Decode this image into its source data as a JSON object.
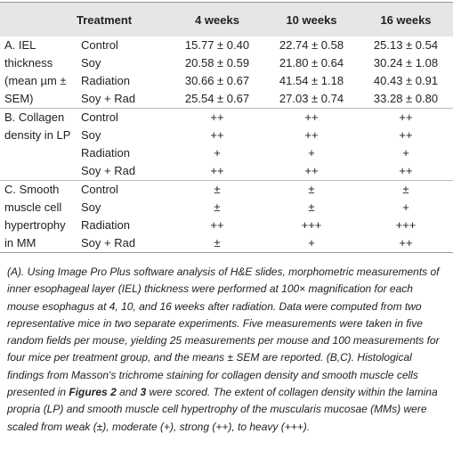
{
  "table": {
    "header": [
      "Treatment",
      "4 weeks",
      "10 weeks",
      "16 weeks"
    ],
    "groups": [
      {
        "label": "A. IEL thickness (mean µm ± SEM)",
        "rows": [
          [
            "Control",
            "15.77 ± 0.40",
            "22.74 ± 0.58",
            "25.13 ± 0.54"
          ],
          [
            "Soy",
            "20.58 ± 0.59",
            "21.80 ± 0.64",
            "30.24 ± 1.08"
          ],
          [
            "Radiation",
            "30.66 ± 0.67",
            "41.54 ± 1.18",
            "40.43 ± 0.91"
          ],
          [
            "Soy + Rad",
            "25.54 ± 0.67",
            "27.03 ± 0.74",
            "33.28 ± 0.80"
          ]
        ]
      },
      {
        "label": "B. Collagen density in LP",
        "rows": [
          [
            "Control",
            "++",
            "++",
            "++"
          ],
          [
            "Soy",
            "++",
            "++",
            "++"
          ],
          [
            "Radiation",
            "+",
            "+",
            "+"
          ],
          [
            "Soy + Rad",
            "++",
            "++",
            "++"
          ]
        ]
      },
      {
        "label": "C. Smooth muscle cell hypertrophy in MM",
        "rows": [
          [
            "Control",
            "±",
            "±",
            "±"
          ],
          [
            "Soy",
            "±",
            "±",
            "+"
          ],
          [
            "Radiation",
            "++",
            "+++",
            "+++"
          ],
          [
            "Soy + Rad",
            "±",
            "+",
            "++"
          ]
        ]
      }
    ]
  },
  "footnote": [
    {
      "text": "(A). Using Image Pro Plus software analysis of H&E slides, morphometric measurements of inner esophageal layer (IEL) thickness were performed at 100× magnification for each mouse esophagus at 4, 10, and 16 weeks after radiation. Data were computed from two representative mice in two separate experiments. Five measurements were taken in five random fields per mouse, yielding 25 measurements per mouse and 100 measurements for four mice per treatment group, and the means ± SEM are reported. (B,C). Histological findings from Masson's trichrome staining for collagen density and smooth muscle cells presented in ",
      "bold": false
    },
    {
      "text": "Figures 2",
      "bold": true
    },
    {
      "text": " and ",
      "bold": false
    },
    {
      "text": "3",
      "bold": true
    },
    {
      "text": " were scored. The extent of collagen density within the lamina propria (LP) and smooth muscle cell hypertrophy of the muscularis mucosae (MMs) were scaled from weak (±), moderate (+), strong (++), to heavy (+++).",
      "bold": false
    }
  ]
}
